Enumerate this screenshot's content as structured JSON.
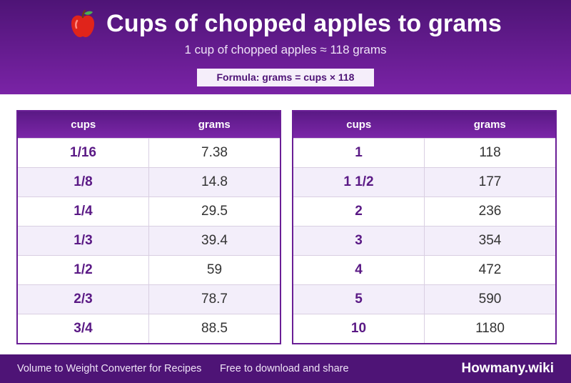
{
  "header": {
    "icon": "apple-icon",
    "title": "Cups of chopped apples to grams",
    "subtitle": "1 cup of chopped apples ≈ 118 grams",
    "formula": "Formula: grams = cups × 118"
  },
  "tables": [
    {
      "headers": [
        "cups",
        "grams"
      ],
      "rows": [
        {
          "cups": "1/16",
          "grams": "7.38"
        },
        {
          "cups": "1/8",
          "grams": "14.8"
        },
        {
          "cups": "1/4",
          "grams": "29.5"
        },
        {
          "cups": "1/3",
          "grams": "39.4"
        },
        {
          "cups": "1/2",
          "grams": "59"
        },
        {
          "cups": "2/3",
          "grams": "78.7"
        },
        {
          "cups": "3/4",
          "grams": "88.5"
        }
      ]
    },
    {
      "headers": [
        "cups",
        "grams"
      ],
      "rows": [
        {
          "cups": "1",
          "grams": "118"
        },
        {
          "cups": "1 1/2",
          "grams": "177"
        },
        {
          "cups": "2",
          "grams": "236"
        },
        {
          "cups": "3",
          "grams": "354"
        },
        {
          "cups": "4",
          "grams": "472"
        },
        {
          "cups": "5",
          "grams": "590"
        },
        {
          "cups": "10",
          "grams": "1180"
        }
      ]
    }
  ],
  "footer": {
    "left": "Volume to Weight Converter for Recipes",
    "middle": "Free to download and share",
    "brand": "Howmany.wiki"
  },
  "colors": {
    "primary": "#4e1476",
    "accent": "#7a23a6",
    "row_alt": "#f3eefa"
  }
}
